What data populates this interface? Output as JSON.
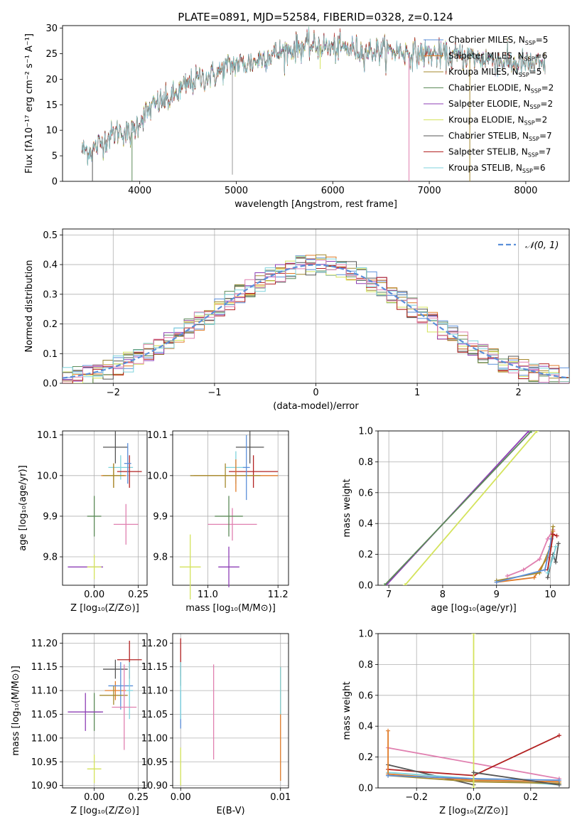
{
  "title": "PLATE=0891, MJD=52584, FIBERID=0328, z=0.124",
  "colors": [
    "#5b8fd9",
    "#e07b28",
    "#a48a2e",
    "#5c8a58",
    "#8e3fb6",
    "#d4e35c",
    "#555555",
    "#b22222",
    "#7fd3dc",
    "#e080b0"
  ],
  "chart_data": [
    {
      "id": "spectrum",
      "type": "line",
      "xlabel": "wavelength [Angstrom, rest frame]",
      "ylabel": "Flux [fλ10⁻¹⁷ erg cm⁻² s⁻¹ A⁻¹]",
      "xlim": [
        3200,
        8450
      ],
      "ylim": [
        0,
        30.5
      ],
      "xticks": [
        4000,
        5000,
        6000,
        7000,
        8000
      ],
      "yticks": [
        0,
        5,
        10,
        15,
        20,
        25,
        30
      ],
      "grid": false,
      "legend_position": "top-right",
      "continuum": [
        [
          3400,
          6.2
        ],
        [
          3500,
          6.0
        ],
        [
          3600,
          7.5
        ],
        [
          3700,
          9.0
        ],
        [
          3800,
          10.0
        ],
        [
          3900,
          9.0
        ],
        [
          4000,
          12.0
        ],
        [
          4100,
          14.0
        ],
        [
          4200,
          15.5
        ],
        [
          4300,
          16.0
        ],
        [
          4400,
          17.5
        ],
        [
          4500,
          19.0
        ],
        [
          4600,
          20.0
        ],
        [
          4700,
          20.5
        ],
        [
          4800,
          21.0
        ],
        [
          4900,
          22.5
        ],
        [
          5000,
          23.0
        ],
        [
          5100,
          23.0
        ],
        [
          5200,
          23.5
        ],
        [
          5300,
          24.5
        ],
        [
          5400,
          25.0
        ],
        [
          5500,
          25.5
        ],
        [
          5600,
          26.0
        ],
        [
          5700,
          26.5
        ],
        [
          5800,
          26.5
        ],
        [
          5900,
          26.5
        ],
        [
          6000,
          26.0
        ],
        [
          6100,
          26.0
        ],
        [
          6200,
          26.0
        ],
        [
          6300,
          25.5
        ],
        [
          6400,
          25.5
        ],
        [
          6500,
          25.5
        ],
        [
          6600,
          25.5
        ],
        [
          6700,
          25.5
        ],
        [
          6800,
          25.0
        ],
        [
          6900,
          25.0
        ],
        [
          7000,
          25.0
        ],
        [
          7100,
          24.8
        ],
        [
          7200,
          24.5
        ],
        [
          7300,
          24.5
        ],
        [
          7400,
          24.5
        ],
        [
          7500,
          24.0
        ],
        [
          7600,
          24.0
        ],
        [
          7700,
          23.5
        ],
        [
          7800,
          23.5
        ],
        [
          7900,
          23.0
        ],
        [
          8000,
          23.0
        ],
        [
          8100,
          22.8
        ],
        [
          8200,
          22.5
        ]
      ],
      "features": [
        [
          4960,
          1.3
        ],
        [
          3920,
          0.0
        ],
        [
          3510,
          0.0
        ],
        [
          6790,
          0.0
        ],
        [
          7420,
          0.0
        ],
        [
          5870,
          22.0
        ],
        [
          4420,
          16.0
        ]
      ],
      "series": [
        {
          "name": "Chabrier MILES, N<sub>SSP</sub>=5",
          "color": "#5b8fd9"
        },
        {
          "name": "Salpeter MILES, N<sub>SSP</sub>=6",
          "color": "#e07b28"
        },
        {
          "name": "Kroupa MILES, N<sub>SSP</sub>=5",
          "color": "#a48a2e"
        },
        {
          "name": "Chabrier ELODIE, N<sub>SSP</sub>=2",
          "color": "#5c8a58"
        },
        {
          "name": "Salpeter ELODIE, N<sub>SSP</sub>=2",
          "color": "#8e3fb6"
        },
        {
          "name": "Kroupa ELODIE, N<sub>SSP</sub>=2",
          "color": "#d4e35c"
        },
        {
          "name": "Chabrier STELIB, N<sub>SSP</sub>=7",
          "color": "#555555"
        },
        {
          "name": "Salpeter STELIB, N<sub>SSP</sub>=7",
          "color": "#b22222"
        },
        {
          "name": "Kroupa STELIB, N<sub>SSP</sub>=6",
          "color": "#7fd3dc"
        }
      ]
    },
    {
      "id": "residuals",
      "type": "bar",
      "xlabel": "(data-model)/error",
      "ylabel": "Normed distribution",
      "xlim": [
        -2.5,
        2.5
      ],
      "ylim": [
        0,
        0.52
      ],
      "xticks": [
        -2,
        -1,
        0,
        1,
        2
      ],
      "yticks": [
        0.0,
        0.1,
        0.2,
        0.3,
        0.4,
        0.5
      ],
      "grid": true,
      "legend_position": "top-right",
      "legend": "𝒩(0, 1)",
      "bin_width": 0.1,
      "normal_mean": 0,
      "normal_std": 1
    },
    {
      "id": "age-vs-Z",
      "type": "scatter",
      "xlabel": "Z [log₁₀(Z/Z⊙)]",
      "ylabel": "age  [log₁₀(age/yr)]",
      "xlim": [
        -0.18,
        0.3
      ],
      "ylim": [
        9.73,
        10.11
      ],
      "xticks": [
        0.0,
        0.25
      ],
      "xtick_labels": [
        "0.00",
        "0.25"
      ],
      "yticks": [
        9.8,
        9.9,
        10.0,
        10.1
      ],
      "grid": true,
      "points": [
        {
          "x": 0.12,
          "y": 10.07,
          "xerr": 0.07,
          "yerr": 0.04,
          "color": "#555555"
        },
        {
          "x": 0.15,
          "y": 10.02,
          "xerr": 0.07,
          "yerr": 0.03,
          "color": "#7fd3dc"
        },
        {
          "x": 0.2,
          "y": 10.01,
          "xerr": 0.07,
          "yerr": 0.04,
          "color": "#b22222"
        },
        {
          "x": 0.11,
          "y": 10.0,
          "xerr": 0.07,
          "yerr": 0.03,
          "color": "#e07b28"
        },
        {
          "x": 0.11,
          "y": 10.0,
          "xerr": 0.06,
          "yerr": 0.03,
          "color": "#a48a2e"
        },
        {
          "x": 0.19,
          "y": 10.03,
          "xerr": 0.02,
          "yerr": 0.05,
          "color": "#5b8fd9"
        },
        {
          "x": 0.18,
          "y": 9.88,
          "xerr": 0.07,
          "yerr": 0.05,
          "color": "#e080b0"
        },
        {
          "x": 0.0,
          "y": 9.9,
          "xerr": 0.04,
          "yerr": 0.05,
          "color": "#5c8a58"
        },
        {
          "x": -0.05,
          "y": 9.775,
          "xerr": 0.1,
          "yerr": 0.0,
          "color": "#8e3fb6"
        },
        {
          "x": 0.0,
          "y": 9.775,
          "xerr": 0.04,
          "yerr": 0.03,
          "color": "#d4e35c"
        }
      ]
    },
    {
      "id": "age-vs-mass",
      "type": "scatter",
      "xlabel": "mass [log₁₀(M/M⊙)]",
      "ylabel": "",
      "xlim": [
        10.9,
        11.23
      ],
      "ylim": [
        9.73,
        10.11
      ],
      "xticks": [
        11.0,
        11.2
      ],
      "xtick_labels": [
        "11.0",
        "11.2"
      ],
      "yticks": [
        9.8,
        9.9,
        10.0,
        10.1
      ],
      "grid": true,
      "points": [
        {
          "x": 11.12,
          "y": 10.07,
          "xerr": 0.04,
          "yerr": 0.04,
          "color": "#555555"
        },
        {
          "x": 11.08,
          "y": 10.02,
          "xerr": 0.03,
          "yerr": 0.04,
          "color": "#7fd3dc"
        },
        {
          "x": 11.13,
          "y": 10.01,
          "xerr": 0.07,
          "yerr": 0.04,
          "color": "#b22222"
        },
        {
          "x": 11.08,
          "y": 10.0,
          "xerr": 0.12,
          "yerr": 0.04,
          "color": "#e07b28"
        },
        {
          "x": 11.05,
          "y": 10.0,
          "xerr": 0.1,
          "yerr": 0.03,
          "color": "#a48a2e"
        },
        {
          "x": 11.11,
          "y": 10.02,
          "xerr": 0.01,
          "yerr": 0.08,
          "color": "#5b8fd9"
        },
        {
          "x": 11.07,
          "y": 9.88,
          "xerr": 0.07,
          "yerr": 0.04,
          "color": "#e080b0"
        },
        {
          "x": 11.06,
          "y": 9.9,
          "xerr": 0.04,
          "yerr": 0.05,
          "color": "#5c8a58"
        },
        {
          "x": 11.06,
          "y": 9.775,
          "xerr": 0.03,
          "yerr": 0.05,
          "color": "#8e3fb6"
        },
        {
          "x": 10.95,
          "y": 9.775,
          "xerr": 0.03,
          "yerr": 0.08,
          "color": "#d4e35c"
        }
      ]
    },
    {
      "id": "weight-vs-age",
      "type": "line",
      "xlabel": "age  [log₁₀(age/yr)]",
      "ylabel": "mass weight",
      "xlim": [
        6.8,
        10.35
      ],
      "ylim": [
        0,
        1.0
      ],
      "xticks": [
        7,
        8,
        9,
        10
      ],
      "yticks": [
        0.0,
        0.2,
        0.4,
        0.6,
        0.8,
        1.0
      ],
      "grid": true,
      "lines": [
        {
          "color": "#8e3fb6",
          "points": [
            [
              6.95,
              0.0
            ],
            [
              9.6,
              1.0
            ]
          ]
        },
        {
          "color": "#5c8a58",
          "points": [
            [
              6.92,
              0.0
            ],
            [
              9.65,
              1.0
            ]
          ]
        },
        {
          "color": "#d4e35c",
          "points": [
            [
              7.3,
              0.0
            ],
            [
              9.75,
              1.0
            ]
          ]
        },
        {
          "color": "#e080b0",
          "points": [
            [
              9.2,
              0.06
            ],
            [
              9.5,
              0.1
            ],
            [
              9.8,
              0.17
            ],
            [
              9.95,
              0.3
            ],
            [
              10.05,
              0.36
            ]
          ]
        },
        {
          "color": "#e07b28",
          "points": [
            [
              9.0,
              0.02
            ],
            [
              9.7,
              0.05
            ],
            [
              9.95,
              0.18
            ],
            [
              10.05,
              0.35
            ]
          ]
        },
        {
          "color": "#a48a2e",
          "points": [
            [
              9.0,
              0.03
            ],
            [
              9.8,
              0.08
            ],
            [
              10.0,
              0.25
            ],
            [
              10.05,
              0.38
            ]
          ]
        },
        {
          "color": "#5b8fd9",
          "points": [
            [
              9.0,
              0.02
            ],
            [
              9.9,
              0.1
            ],
            [
              10.02,
              0.3
            ]
          ]
        },
        {
          "color": "#555555",
          "points": [
            [
              9.95,
              0.05
            ],
            [
              10.05,
              0.2
            ],
            [
              10.1,
              0.15
            ],
            [
              10.15,
              0.27
            ]
          ]
        },
        {
          "color": "#b22222",
          "points": [
            [
              9.95,
              0.1
            ],
            [
              10.05,
              0.33
            ],
            [
              10.12,
              0.32
            ]
          ]
        },
        {
          "color": "#7fd3dc",
          "points": [
            [
              9.95,
              0.08
            ],
            [
              10.05,
              0.18
            ],
            [
              10.1,
              0.25
            ]
          ]
        }
      ]
    },
    {
      "id": "mass-vs-Z",
      "type": "scatter",
      "xlabel": "Z [log₁₀(Z/Z⊙)]",
      "ylabel": "mass [log₁₀(M/M⊙)]",
      "xlim": [
        -0.18,
        0.3
      ],
      "ylim": [
        10.895,
        11.22
      ],
      "xticks": [
        0.0,
        0.25
      ],
      "xtick_labels": [
        "0.00",
        "0.25"
      ],
      "yticks": [
        10.9,
        10.95,
        11.0,
        11.05,
        11.1,
        11.15,
        11.2
      ],
      "grid": true,
      "points": [
        {
          "x": 0.2,
          "y": 11.165,
          "xerr": 0.07,
          "yerr": 0.04,
          "color": "#b22222"
        },
        {
          "x": 0.12,
          "y": 11.145,
          "xerr": 0.07,
          "yerr": 0.02,
          "color": "#555555"
        },
        {
          "x": 0.12,
          "y": 11.1,
          "xerr": 0.06,
          "yerr": 0.02,
          "color": "#e07b28"
        },
        {
          "x": 0.15,
          "y": 11.11,
          "xerr": 0.07,
          "yerr": 0.05,
          "color": "#5b8fd9"
        },
        {
          "x": 0.11,
          "y": 11.09,
          "xerr": 0.08,
          "yerr": 0.02,
          "color": "#a48a2e"
        },
        {
          "x": 0.2,
          "y": 11.1,
          "xerr": 0.02,
          "yerr": 0.06,
          "color": "#7fd3dc"
        },
        {
          "x": 0.17,
          "y": 11.065,
          "xerr": 0.07,
          "yerr": 0.09,
          "color": "#e080b0"
        },
        {
          "x": 0.0,
          "y": 11.055,
          "xerr": 0.04,
          "yerr": 0.04,
          "color": "#5c8a58"
        },
        {
          "x": -0.05,
          "y": 11.055,
          "xerr": 0.1,
          "yerr": 0.04,
          "color": "#8e3fb6"
        },
        {
          "x": 0.0,
          "y": 10.935,
          "xerr": 0.04,
          "yerr": 0.03,
          "color": "#d4e35c"
        }
      ]
    },
    {
      "id": "mass-vs-EBV",
      "type": "scatter",
      "xlabel": "E(B-V)",
      "ylabel": "",
      "xlim": [
        -0.0008,
        0.0108
      ],
      "ylim": [
        10.895,
        11.22
      ],
      "xticks": [
        0.0,
        0.01
      ],
      "xtick_labels": [
        "0.00",
        "0.01"
      ],
      "yticks": [
        10.9,
        10.95,
        11.0,
        11.05,
        11.1,
        11.15,
        11.2
      ],
      "grid": true,
      "points": [
        {
          "x": 0.0,
          "y": 11.17,
          "xerr": 0.0,
          "yerr": 0.04,
          "color": "#b22222"
        },
        {
          "x": 0.0,
          "y": 11.13,
          "xerr": 0.0,
          "yerr": 0.02,
          "color": "#555555"
        },
        {
          "x": 0.0,
          "y": 11.06,
          "xerr": 0.0,
          "yerr": 0.04,
          "color": "#5b8fd9"
        },
        {
          "x": 0.0,
          "y": 11.1,
          "xerr": 0.0,
          "yerr": 0.06,
          "color": "#7fd3dc"
        },
        {
          "x": 0.0,
          "y": 10.94,
          "xerr": 0.0,
          "yerr": 0.04,
          "color": "#d4e35c"
        },
        {
          "x": 0.0033,
          "y": 11.055,
          "xerr": 0.0,
          "yerr": 0.1,
          "color": "#e080b0"
        },
        {
          "x": 0.01,
          "y": 11.03,
          "xerr": 0.0,
          "yerr": 0.12,
          "color": "#e07b28"
        },
        {
          "x": 0.01,
          "y": 11.1,
          "xerr": 0.0,
          "yerr": 0.05,
          "color": "#7fd3dc"
        }
      ]
    },
    {
      "id": "weight-vs-Z",
      "type": "line",
      "xlabel": "Z [log₁₀(Z/Z⊙)]",
      "ylabel": "mass weight",
      "xlim": [
        -0.335,
        0.335
      ],
      "ylim": [
        0,
        1.0
      ],
      "xticks": [
        -0.2,
        0.0,
        0.2
      ],
      "xtick_labels": [
        "−0.2",
        "0.0",
        "0.2"
      ],
      "yticks": [
        0.0,
        0.2,
        0.4,
        0.6,
        0.8,
        1.0
      ],
      "grid": true,
      "lines": [
        {
          "color": "#e080b0",
          "points": [
            [
              -0.3,
              0.26
            ],
            [
              0.3,
              0.06
            ]
          ]
        },
        {
          "color": "#b22222",
          "points": [
            [
              -0.3,
              0.12
            ],
            [
              0.0,
              0.08
            ],
            [
              0.3,
              0.34
            ]
          ]
        },
        {
          "color": "#555555",
          "points": [
            [
              -0.3,
              0.15
            ],
            [
              0.0,
              0.02
            ]
          ]
        },
        {
          "color": "#7fd3dc",
          "points": [
            [
              -0.3,
              0.1
            ],
            [
              0.0,
              0.06
            ],
            [
              0.3,
              0.02
            ]
          ]
        },
        {
          "color": "#e07b28",
          "points": [
            [
              -0.3,
              0.37
            ],
            [
              -0.3,
              0.09
            ],
            [
              0.0,
              0.05
            ],
            [
              0.3,
              0.04
            ]
          ]
        },
        {
          "color": "#a48a2e",
          "points": [
            [
              -0.3,
              0.08
            ],
            [
              0.0,
              0.04
            ],
            [
              0.3,
              0.03
            ]
          ]
        },
        {
          "color": "#5b8fd9",
          "points": [
            [
              -0.3,
              0.08
            ],
            [
              0.0,
              0.06
            ],
            [
              0.3,
              0.05
            ]
          ]
        },
        {
          "color": "#d4e35c",
          "points": [
            [
              0.0,
              0.0
            ],
            [
              0.0,
              1.0
            ]
          ]
        },
        {
          "color": "#555555",
          "points": [
            [
              0.0,
              0.1
            ],
            [
              0.3,
              0.02
            ]
          ]
        }
      ]
    }
  ]
}
